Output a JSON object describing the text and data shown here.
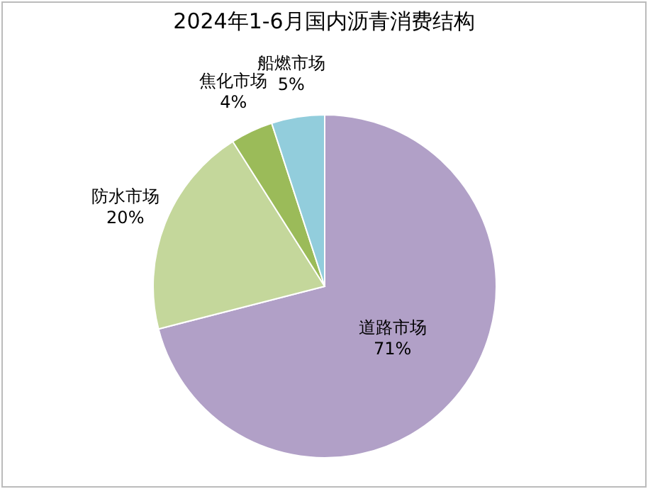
{
  "chart_data": {
    "type": "pie",
    "title": "2024年1-6月国内沥青消费结构",
    "categories": [
      "道路市场",
      "防水市场",
      "焦化市场",
      "船燃市场"
    ],
    "values": [
      71,
      20,
      4,
      5
    ],
    "colors": [
      "#b1a0c7",
      "#c4d79b",
      "#9bbb59",
      "#92cddc"
    ],
    "value_labels": [
      "71%",
      "20%",
      "4%",
      "5%"
    ]
  }
}
